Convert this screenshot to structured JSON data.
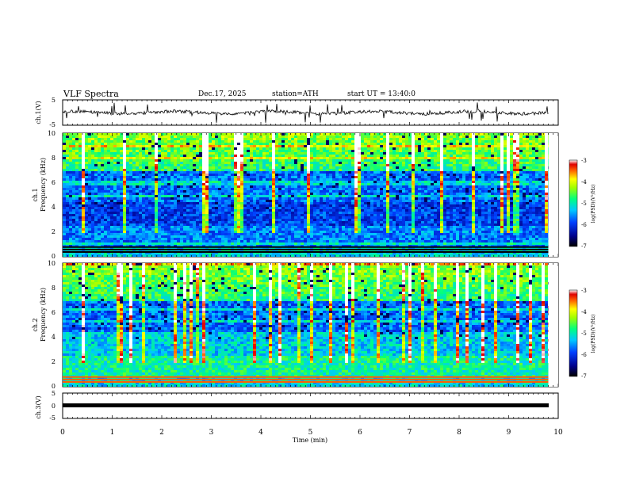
{
  "header": {
    "title": "VLF  Spectra",
    "date": "Dec.17, 2025",
    "station": "station=ATH",
    "start": "start  UT  =    13:40:0"
  },
  "chart_data": {
    "type": "heatmap",
    "title": "VLF  Spectra",
    "xlabel": "Time  (min)",
    "xlim": [
      0,
      10
    ],
    "xticks": [
      "0",
      "1",
      "2",
      "3",
      "4",
      "5",
      "6",
      "7",
      "8",
      "9",
      "10"
    ],
    "panels": [
      {
        "name": "ch1-waveform",
        "ylabel": "ch.1(V)",
        "ylim": [
          -5,
          5
        ],
        "yticks": [
          "5",
          "-5"
        ]
      },
      {
        "name": "ch1-spectrogram",
        "ylabel": "ch.1",
        "ylabel2": "Frequency  (kHz)",
        "ylim": [
          0,
          10
        ],
        "yticks": [
          "10",
          "8",
          "6",
          "4",
          "2",
          "0"
        ]
      },
      {
        "name": "ch2-spectrogram",
        "ylabel": "ch.2",
        "ylabel2": "Frequency  (kHz)",
        "ylim": [
          0,
          10
        ],
        "yticks": [
          "10",
          "8",
          "6",
          "4",
          "2",
          "0"
        ]
      },
      {
        "name": "ch3-waveform",
        "ylabel": "ch.3(V)",
        "ylim": [
          -5,
          5
        ],
        "yticks": [
          "5",
          "0",
          "-5"
        ]
      }
    ],
    "colorbar": {
      "label": "log(PSD)(V²/Hz)",
      "range": [
        -7,
        -3
      ],
      "ticks": [
        "-3",
        "-4",
        "-5",
        "-6",
        "-7"
      ]
    },
    "data_end_min": 9.8
  }
}
